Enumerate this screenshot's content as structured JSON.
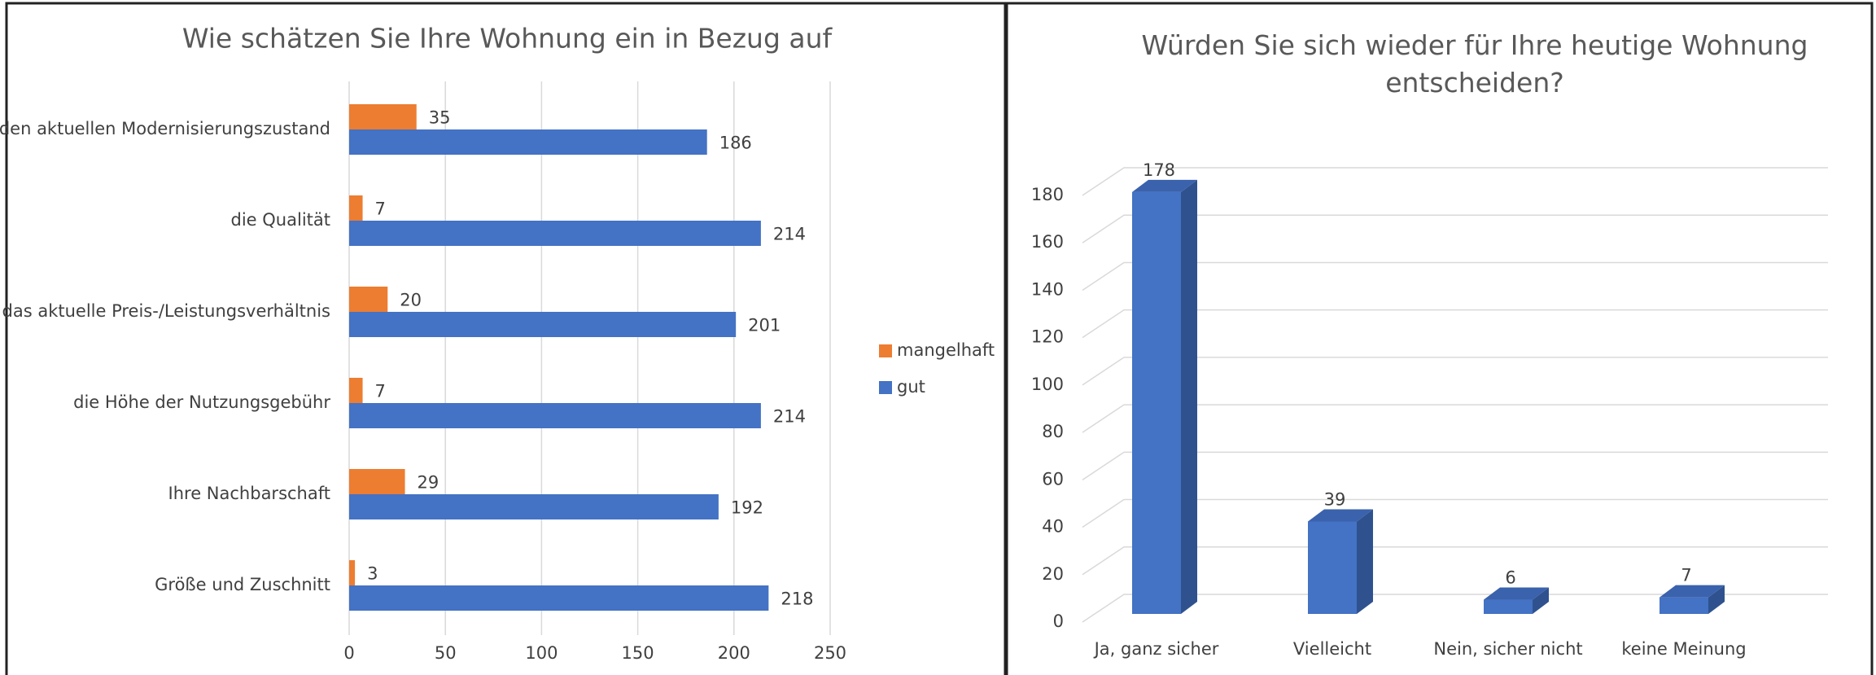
{
  "chart_data": [
    {
      "type": "hbar",
      "title": "Wie schätzen Sie Ihre Wohnung ein in Bezug auf",
      "categories": [
        "den aktuellen Modernisierungszustand",
        "die Qualität",
        "das aktuelle Preis-/Leistungsverhältnis",
        "die Höhe der Nutzungsgebühr",
        "Ihre Nachbarschaft",
        "Größe und Zuschnitt"
      ],
      "series": [
        {
          "name": "mangelhaft",
          "color": "#ed7d31",
          "values": [
            35,
            7,
            20,
            7,
            29,
            3
          ]
        },
        {
          "name": "gut",
          "color": "#4472c4",
          "values": [
            186,
            214,
            201,
            214,
            192,
            218
          ]
        }
      ],
      "xlim": [
        0,
        250
      ],
      "xticks": [
        0,
        50,
        100,
        150,
        200,
        250
      ],
      "grid": true,
      "legend": "right"
    },
    {
      "type": "bar3d",
      "title": "Würden Sie sich wieder für Ihre heutige Wohnung entscheiden?",
      "categories": [
        "Ja, ganz sicher",
        "Vielleicht",
        "Nein, sicher nicht",
        "keine Meinung"
      ],
      "values": [
        178,
        39,
        6,
        7
      ],
      "color": "#4472c4",
      "ylim": [
        0,
        180
      ],
      "yticks": [
        0,
        20,
        40,
        60,
        80,
        100,
        120,
        140,
        160,
        180
      ],
      "grid": true
    }
  ]
}
